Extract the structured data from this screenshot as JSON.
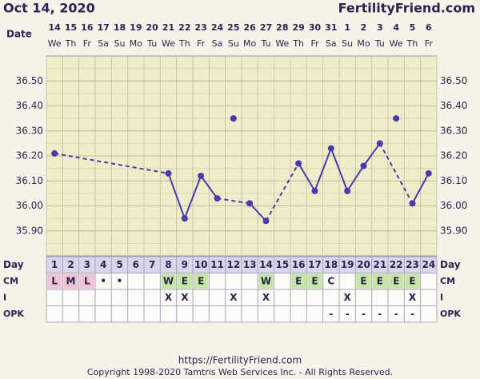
{
  "header": {
    "date": "Oct 14, 2020",
    "site": "FertilityFriend.com"
  },
  "chart_data": {
    "type": "line",
    "x_label": "Date",
    "dates": [
      14,
      15,
      16,
      17,
      18,
      19,
      20,
      21,
      22,
      23,
      24,
      25,
      26,
      27,
      28,
      29,
      30,
      31,
      1,
      2,
      3,
      4,
      5,
      6
    ],
    "weekdays": [
      "We",
      "Th",
      "Fr",
      "Sa",
      "Su",
      "Mo",
      "Tu",
      "We",
      "Th",
      "Fr",
      "Sa",
      "Su",
      "Mo",
      "Tu",
      "We",
      "Th",
      "Fr",
      "Sa",
      "Su",
      "Mo",
      "Tu",
      "We",
      "Th",
      "Fr"
    ],
    "day_label": "Day",
    "days": [
      1,
      2,
      3,
      4,
      5,
      6,
      7,
      8,
      9,
      10,
      11,
      12,
      13,
      14,
      15,
      16,
      17,
      18,
      19,
      20,
      21,
      22,
      23,
      24
    ],
    "temperatures": [
      36.21,
      null,
      null,
      null,
      null,
      null,
      null,
      36.13,
      35.95,
      36.12,
      36.03,
      null,
      36.01,
      35.94,
      null,
      36.17,
      36.06,
      36.23,
      36.06,
      36.16,
      36.25,
      null,
      36.01,
      36.13
    ],
    "discarded_temperatures": [
      null,
      null,
      null,
      null,
      null,
      null,
      null,
      null,
      null,
      null,
      null,
      36.35,
      null,
      null,
      null,
      null,
      null,
      null,
      null,
      null,
      null,
      36.35,
      null,
      null
    ],
    "color": "#4a3aae",
    "ylim": [
      35.8,
      36.6
    ],
    "yticks": [
      {
        "value": 35.9,
        "label": "35.90"
      },
      {
        "value": 36.0,
        "label": "36.00"
      },
      {
        "value": 36.1,
        "label": "36.10"
      },
      {
        "value": 36.2,
        "label": "36.20"
      },
      {
        "value": 36.3,
        "label": "36.30"
      },
      {
        "value": 36.4,
        "label": "36.40"
      },
      {
        "value": 36.5,
        "label": "36.50"
      }
    ],
    "grid": true,
    "rows": [
      {
        "label": "CM",
        "values": [
          "L",
          "M",
          "L",
          "•",
          "•",
          null,
          null,
          "W",
          "E",
          "E",
          null,
          null,
          null,
          "W",
          null,
          "E",
          "E",
          "C",
          null,
          "E",
          "E",
          "E",
          "E",
          null
        ],
        "colors": [
          "#efc3d3",
          "#efc3d3",
          "#efc3d3",
          null,
          null,
          null,
          null,
          "#c6e6a6",
          "#c6e6a6",
          "#c6e6a6",
          null,
          null,
          null,
          "#c6e6a6",
          null,
          "#c6e6a6",
          "#c6e6a6",
          null,
          null,
          "#c6e6a6",
          "#c6e6a6",
          "#c6e6a6",
          "#c6e6a6",
          null
        ]
      },
      {
        "label": "I",
        "values": [
          null,
          null,
          null,
          null,
          null,
          null,
          null,
          "X",
          "X",
          null,
          null,
          "X",
          null,
          "X",
          null,
          null,
          null,
          null,
          "X",
          null,
          null,
          null,
          "X",
          null
        ],
        "colors": null
      },
      {
        "label": "OPK",
        "values": [
          null,
          null,
          null,
          null,
          null,
          null,
          null,
          null,
          null,
          null,
          null,
          null,
          null,
          null,
          null,
          null,
          null,
          "-",
          "-",
          "-",
          "-",
          "-",
          "-",
          null
        ],
        "colors": null
      }
    ]
  },
  "footer": {
    "url": "https://FertilityFriend.com",
    "copyright": "Copyright 1998-2020 Tamtris Web Services Inc. - All Rights Reserved."
  }
}
